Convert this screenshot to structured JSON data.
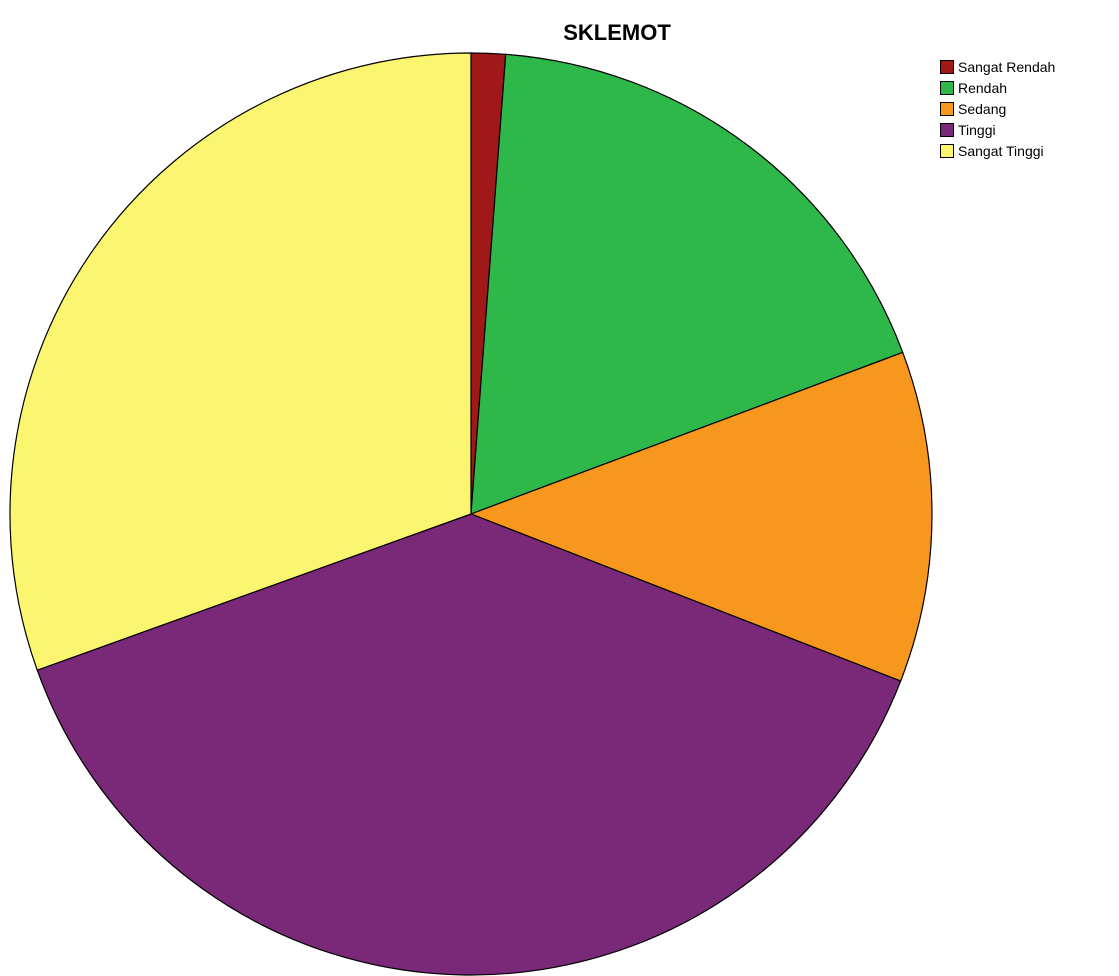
{
  "chart_data": {
    "type": "pie",
    "title": "SKLEMOT",
    "legend_position": "top-right",
    "start_angle_deg": 0,
    "direction": "clockwise",
    "slices": [
      {
        "label": "Sangat Rendah",
        "value": 1.2,
        "color": "#a01818"
      },
      {
        "label": "Rendah",
        "value": 18.1,
        "color": "#2fb84a"
      },
      {
        "label": "Sedang",
        "value": 11.6,
        "color": "#f7971e"
      },
      {
        "label": "Tinggi",
        "value": 38.6,
        "color": "#7a2878"
      },
      {
        "label": "Sangat Tinggi",
        "value": 30.5,
        "color": "#fbf570"
      }
    ]
  }
}
